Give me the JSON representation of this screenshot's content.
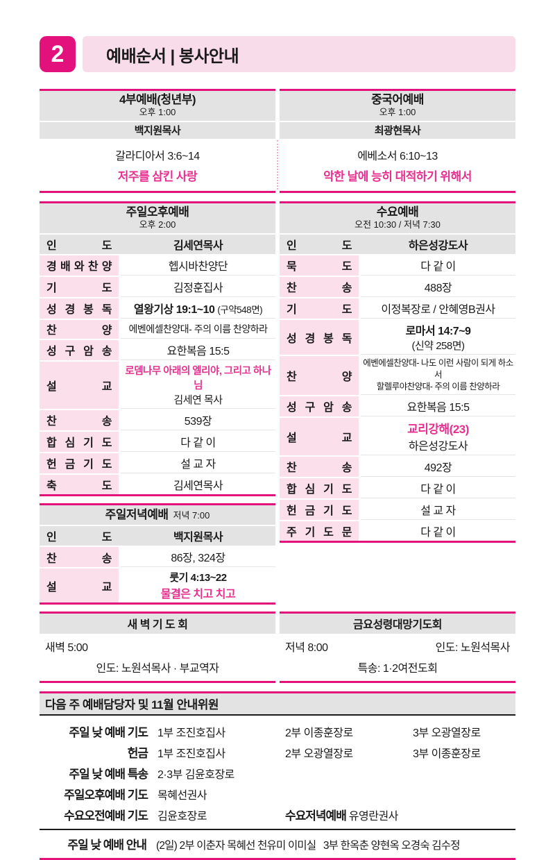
{
  "colors": {
    "accent": "#e2117c",
    "accent_text": "#e6308f",
    "banner_pink": "#f9dce9",
    "label_pink": "#fbdfeb",
    "header_gray": "#e3e3e3"
  },
  "page": {
    "badge": "2",
    "title": "예배순서 | 봉사안내"
  },
  "top_services": {
    "youth": {
      "name": "4부예배(청년부)",
      "time": "오후 1:00",
      "pastor": "백지원목사",
      "scripture": "갈라디아서 3:6~14",
      "sermon": "저주를 삼킨 사랑"
    },
    "chinese": {
      "name": "중국어예배",
      "time": "오후 1:00",
      "pastor": "최광현목사",
      "scripture": "에베소서 6:10~13",
      "sermon": "악한 날에 능히 대적하기 위해서"
    }
  },
  "afternoon": {
    "title": "주일오후예배",
    "time": "오후 2:00",
    "rows": {
      "indo": {
        "label": "인 도",
        "value": "김세연목사"
      },
      "praise_team": {
        "label": "경 배 와 찬 양",
        "value": "헵시바찬양단"
      },
      "prayer": {
        "label": "기 도",
        "value": "김정훈집사"
      },
      "scripture": {
        "label": "성 경 봉 독",
        "ref": "열왕기상 19:1~10",
        "note": "(구약548면)"
      },
      "choir": {
        "label": "찬 양",
        "value": "에벤에셀찬양대- 주의 이름 찬양하라"
      },
      "verse": {
        "label": "성 구 암 송",
        "value": "요한복음 15:5"
      },
      "sermon": {
        "label": "설 교",
        "title": "로뎀나무 아래의 엘리야, 그리고 하나님",
        "preacher": "김세연 목사"
      },
      "hymn": {
        "label": "찬 송",
        "value": "539장"
      },
      "united_prayer": {
        "label": "합 심 기 도",
        "value": "다 같 이"
      },
      "offering_prayer": {
        "label": "헌 금 기 도",
        "value": "설 교 자"
      },
      "benediction": {
        "label": "축 도",
        "value": "김세연목사"
      }
    }
  },
  "evening": {
    "title": "주일저녁예배",
    "time": "저녁 7:00",
    "rows": {
      "indo": {
        "label": "인 도",
        "value": "백지원목사"
      },
      "hymn": {
        "label": "찬 송",
        "value": "86장, 324장"
      },
      "sermon": {
        "label": "설 교",
        "ref": "룻기 4:13~22",
        "title": "물결은 치고 치고"
      }
    }
  },
  "wednesday": {
    "title": "수요예배",
    "time": "오전 10:30 / 저녁 7:30",
    "rows": {
      "indo": {
        "label": "인 도",
        "value": "하은성강도사"
      },
      "mukdo": {
        "label": "묵 도",
        "value": "다 같 이"
      },
      "hymn1": {
        "label": "찬 송",
        "value": "488장"
      },
      "prayer": {
        "label": "기 도",
        "value": "이정복장로 / 안혜영B권사"
      },
      "scripture": {
        "label": "성 경 봉 독",
        "ref": "로마서 14:7~9",
        "note": "(신약 258면)"
      },
      "choir": {
        "label": "찬 양",
        "line1": "에벤에셀찬양대- 나도 이런 사람이 되게 하소서",
        "line2": "할렐루야찬양대- 주의 이름 찬양하라"
      },
      "verse": {
        "label": "성 구 암 송",
        "value": "요한복음 15:5"
      },
      "sermon": {
        "label": "설 교",
        "title": "교리강해(23)",
        "preacher": "하은성강도사"
      },
      "hymn2": {
        "label": "찬 송",
        "value": "492장"
      },
      "united_prayer": {
        "label": "합 심 기 도",
        "value": "다 같 이"
      },
      "offering_prayer": {
        "label": "헌 금 기 도",
        "value": "설 교 자"
      },
      "lords_prayer": {
        "label": "주 기 도 문",
        "value": "다 같 이"
      }
    }
  },
  "dawn": {
    "title": "새 벽 기 도 회",
    "time": "새벽 5:00",
    "leader": "인도: 노원석목사 · 부교역자"
  },
  "friday": {
    "title": "금요성령대망기도회",
    "time": "저녁 8:00",
    "leader": "인도: 노원석목사",
    "special": "특송: 1·2여전도회"
  },
  "assignments": {
    "title": "다음 주 예배담당자 및 11월 안내위원",
    "rows": [
      {
        "label": "주일 낮 예배 기도",
        "c1": "1부 조진호집사",
        "c2": "2부 이종훈장로",
        "c3": "3부 오광열장로"
      },
      {
        "label": "헌금",
        "c1": "1부 조진호집사",
        "c2": "2부 오광열장로",
        "c3": "3부 이종훈장로"
      },
      {
        "label": "주일 낮 예배 특송",
        "c1": "2·3부 김윤호장로",
        "c2": "",
        "c3": ""
      },
      {
        "label": "주일오후예배 기도",
        "c1": "목혜선권사",
        "c2": "",
        "c3": ""
      },
      {
        "label": "수요오전예배 기도",
        "c1": "김윤호장로",
        "extra_label": "수요저녁예배",
        "extra_value": "유영란권사"
      }
    ],
    "notice_label": "주일 낮 예배 안내",
    "notice_value": "(2일) 2부 이춘자 목혜선 천유미 이미실   3부 한옥춘 양현옥 오경숙 김수정"
  }
}
